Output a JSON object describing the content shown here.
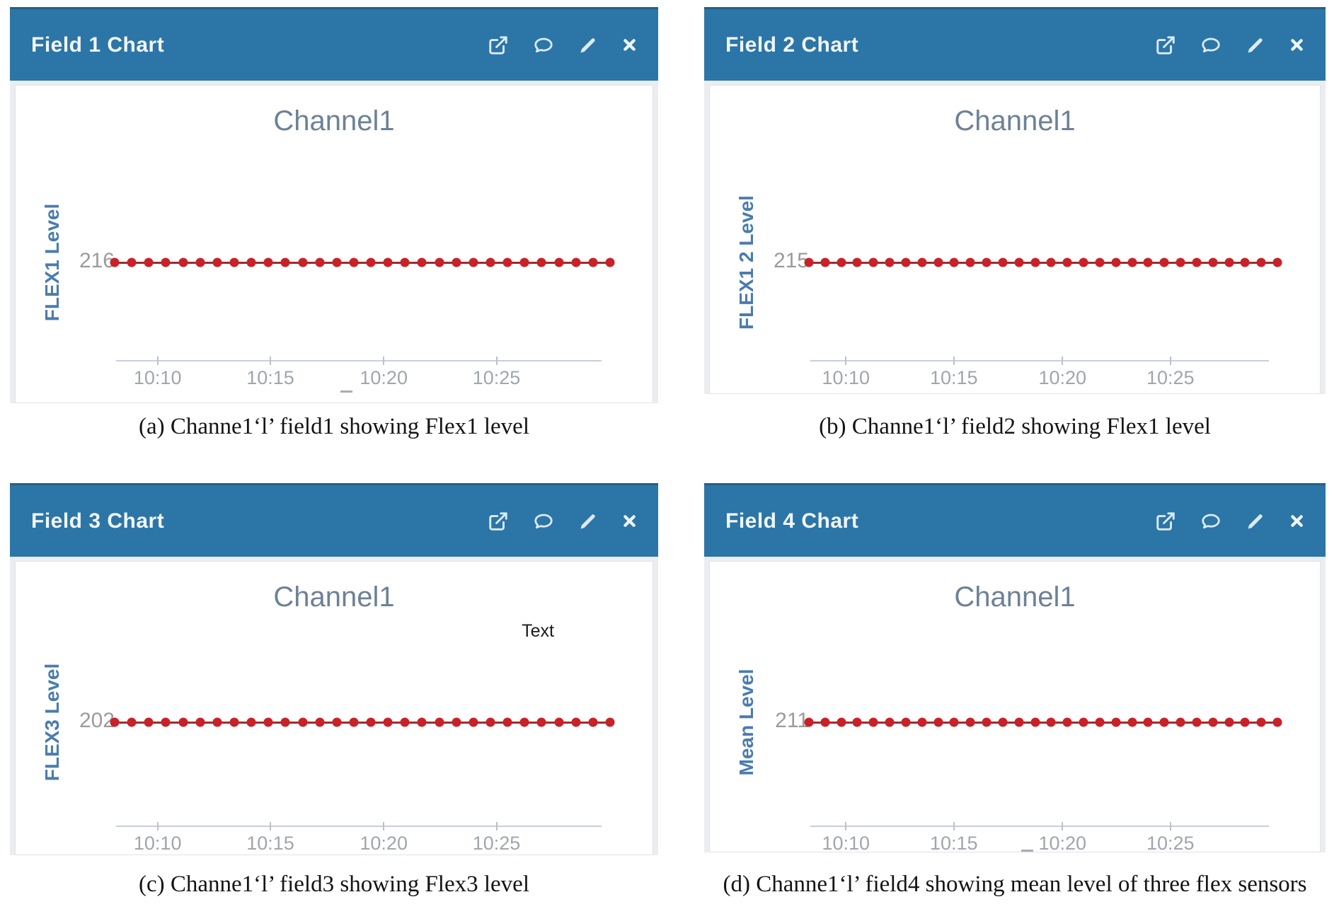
{
  "colors": {
    "header-blue": "#2c75a7",
    "header-text": "#f2f7fb",
    "chart-title": "#6d8196",
    "axis-label-blue": "#4a7cae",
    "ytick-gray": "#9b9b9b",
    "xtick-gray": "#a0a6ad",
    "marker-red": "#c92127",
    "line-red": "#9e2b2b",
    "axis-line": "#c9cede"
  },
  "figures": [
    {
      "header_title": "Field 1 Chart",
      "icons": [
        "external-link-icon",
        "comment-icon",
        "edit-icon",
        "close-icon"
      ],
      "caption": "(a) Channe1‘l’ field1 showing Flex1 level"
    },
    {
      "header_title": "Field 2 Chart",
      "icons": [
        "external-link-icon",
        "comment-icon",
        "edit-icon",
        "close-icon"
      ],
      "caption": "(b) Channe1‘l’ field2 showing Flex1 level"
    },
    {
      "header_title": "Field 3 Chart",
      "icons": [
        "external-link-icon",
        "comment-icon",
        "edit-icon",
        "close-icon"
      ],
      "caption": "(c) Channe1‘l’ field3 showing Flex3 level"
    },
    {
      "header_title": "Field 4 Chart",
      "icons": [
        "external-link-icon",
        "comment-icon",
        "edit-icon",
        "close-icon"
      ],
      "caption": "(d) Channe1‘l’ field4 showing mean level of three flex sensors"
    }
  ],
  "chart_data": [
    {
      "type": "line",
      "title": "Channel1",
      "ylabel": "FLEX1 Level",
      "y_tick_label": "216",
      "x_tick_labels": [
        "10:10",
        "10:15",
        "10:20",
        "10:25"
      ],
      "constant_value": 216,
      "n_points": 30,
      "values": [
        216,
        216,
        216,
        216,
        216,
        216,
        216,
        216,
        216,
        216,
        216,
        216,
        216,
        216,
        216,
        216,
        216,
        216,
        216,
        216,
        216,
        216,
        216,
        216,
        216,
        216,
        216,
        216,
        216,
        216
      ],
      "marker": "circle",
      "marker_color": "#c92127",
      "line_color": "#9e2b2b",
      "grid": false,
      "legend": false
    },
    {
      "type": "line",
      "title": "Channel1",
      "ylabel": "FLEX1 2 Level",
      "y_tick_label": "215",
      "x_tick_labels": [
        "10:10",
        "10:15",
        "10:20",
        "10:25"
      ],
      "constant_value": 215,
      "n_points": 30,
      "values": [
        215,
        215,
        215,
        215,
        215,
        215,
        215,
        215,
        215,
        215,
        215,
        215,
        215,
        215,
        215,
        215,
        215,
        215,
        215,
        215,
        215,
        215,
        215,
        215,
        215,
        215,
        215,
        215,
        215,
        215
      ],
      "marker": "circle",
      "marker_color": "#c92127",
      "line_color": "#9e2b2b",
      "grid": false,
      "legend": false
    },
    {
      "type": "line",
      "title": "Channel1",
      "ylabel": "FLEX3 Level",
      "y_tick_label": "202",
      "x_tick_labels": [
        "10:10",
        "10:15",
        "10:20",
        "10:25"
      ],
      "annotation": "Text",
      "constant_value": 202,
      "n_points": 30,
      "values": [
        202,
        202,
        202,
        202,
        202,
        202,
        202,
        202,
        202,
        202,
        202,
        202,
        202,
        202,
        202,
        202,
        202,
        202,
        202,
        202,
        202,
        202,
        202,
        202,
        202,
        202,
        202,
        202,
        202,
        202
      ],
      "marker": "circle",
      "marker_color": "#c92127",
      "line_color": "#9e2b2b",
      "grid": false,
      "legend": false
    },
    {
      "type": "line",
      "title": "Channel1",
      "ylabel": "Mean Level",
      "y_tick_label": "211",
      "x_tick_labels": [
        "10:10",
        "10:15",
        "10:20",
        "10:25"
      ],
      "constant_value": 211,
      "n_points": 30,
      "values": [
        211,
        211,
        211,
        211,
        211,
        211,
        211,
        211,
        211,
        211,
        211,
        211,
        211,
        211,
        211,
        211,
        211,
        211,
        211,
        211,
        211,
        211,
        211,
        211,
        211,
        211,
        211,
        211,
        211,
        211
      ],
      "marker": "circle",
      "marker_color": "#c92127",
      "line_color": "#9e2b2b",
      "grid": false,
      "legend": false
    }
  ]
}
